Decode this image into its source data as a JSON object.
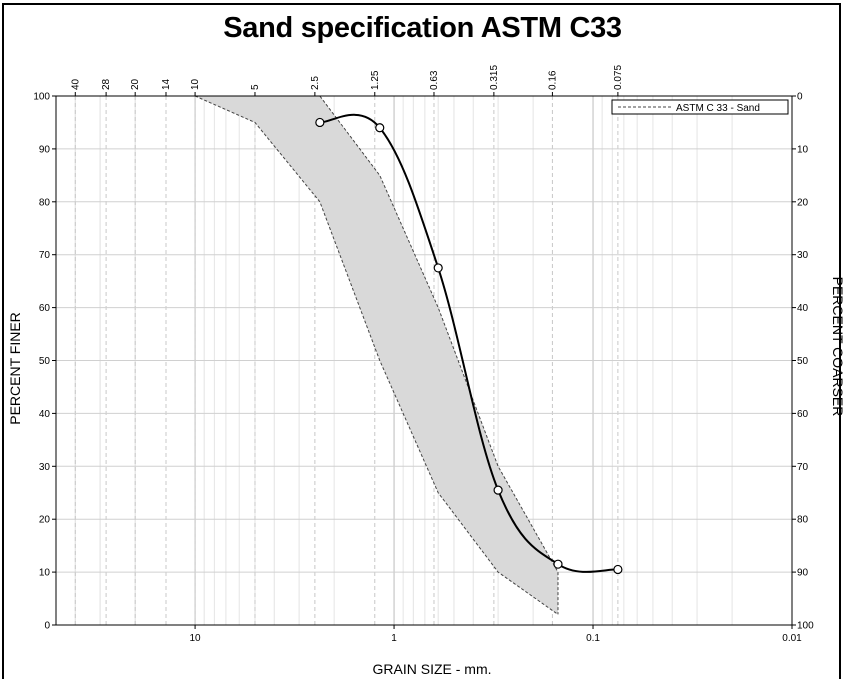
{
  "chart_data": {
    "type": "line",
    "title": "Sand specification ASTM C33",
    "xlabel": "GRAIN SIZE - mm.",
    "ylabel": "PERCENT FINER",
    "y2label": "PERCENT COARSER",
    "x_scale": "log",
    "x_direction": "reversed",
    "xlim": [
      50,
      0.01
    ],
    "ylim": [
      0,
      100
    ],
    "grid": true,
    "legend_placement": "top-right",
    "x_ticks": [
      {
        "value": 10,
        "label": "10"
      },
      {
        "value": 1,
        "label": "1"
      },
      {
        "value": 0.1,
        "label": "0.1"
      },
      {
        "value": 0.01,
        "label": "0.01"
      }
    ],
    "y_ticks": [
      0,
      10,
      20,
      30,
      40,
      50,
      60,
      70,
      80,
      90,
      100
    ],
    "y2_ticks": [
      {
        "percent_finer": 100,
        "label": "0"
      },
      {
        "percent_finer": 90,
        "label": "10"
      },
      {
        "percent_finer": 80,
        "label": "20"
      },
      {
        "percent_finer": 70,
        "label": "30"
      },
      {
        "percent_finer": 60,
        "label": "40"
      },
      {
        "percent_finer": 50,
        "label": "50"
      },
      {
        "percent_finer": 40,
        "label": "60"
      },
      {
        "percent_finer": 30,
        "label": "70"
      },
      {
        "percent_finer": 20,
        "label": "80"
      },
      {
        "percent_finer": 10,
        "label": "90"
      },
      {
        "percent_finer": 0,
        "label": "100"
      }
    ],
    "sieve_sizes": [
      {
        "value": 40,
        "label": "40"
      },
      {
        "value": 28,
        "label": "28"
      },
      {
        "value": 20,
        "label": "20"
      },
      {
        "value": 14,
        "label": "14"
      },
      {
        "value": 10,
        "label": "10"
      },
      {
        "value": 5,
        "label": "5"
      },
      {
        "value": 2.5,
        "label": "2.5"
      },
      {
        "value": 1.25,
        "label": "1.25"
      },
      {
        "value": 0.63,
        "label": "0.63"
      },
      {
        "value": 0.315,
        "label": "0.315"
      },
      {
        "value": 0.16,
        "label": "0.16"
      },
      {
        "value": 0.075,
        "label": "0.075"
      }
    ],
    "spec_band": {
      "name": "ASTM C 33 - Sand",
      "upper": {
        "x": [
          10,
          5,
          2.36,
          1.18,
          0.6,
          0.3,
          0.15
        ],
        "y": [
          100,
          100,
          100,
          85,
          60,
          30,
          10
        ]
      },
      "lower": {
        "x": [
          10,
          5,
          2.36,
          1.18,
          0.6,
          0.3,
          0.15
        ],
        "y": [
          100,
          95,
          80,
          50,
          25,
          10,
          2
        ]
      },
      "fill_color": "#d9d9d9",
      "line_color": "#444444"
    },
    "series": [
      {
        "x": [
          2.36,
          1.18,
          0.6,
          0.3,
          0.15,
          0.075
        ],
        "y": [
          95,
          94,
          67.5,
          25.5,
          11.5,
          10.5
        ],
        "color": "#000000"
      }
    ]
  }
}
